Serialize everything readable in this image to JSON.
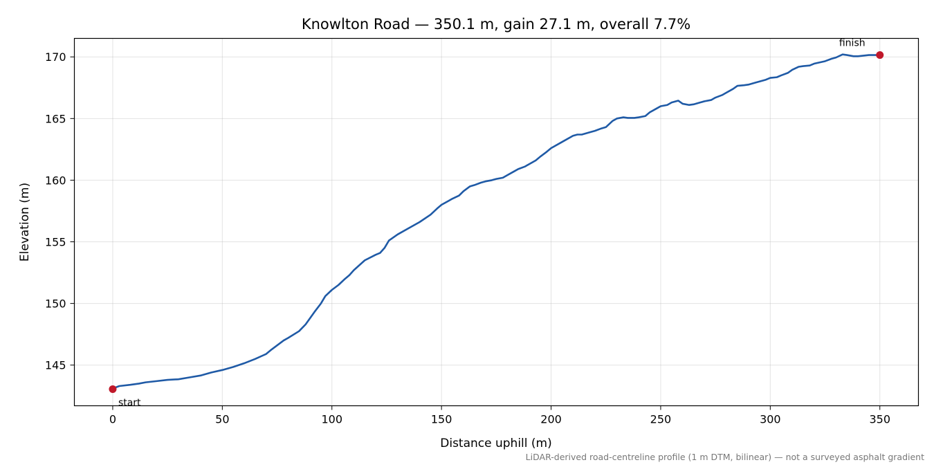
{
  "chart_data": {
    "type": "line",
    "title": "Knowlton Road — 350.1 m, gain 27.1 m, overall 7.7%",
    "xlabel": "Distance uphill (m)",
    "ylabel": "Elevation (m)",
    "xlim": [
      -17.5,
      367.6
    ],
    "ylim": [
      141.7,
      171.5
    ],
    "xticks": [
      0,
      50,
      100,
      150,
      200,
      250,
      300,
      350
    ],
    "yticks": [
      145,
      150,
      155,
      160,
      165,
      170
    ],
    "grid": true,
    "note": "LiDAR-derived road-centreline profile (1 m DTM, bilinear) — not a surveyed asphalt gradient",
    "colors": {
      "line": "#1f5aa6",
      "markers": "#c0182a"
    },
    "series": [
      {
        "x": [
          0,
          3,
          8,
          12,
          15,
          20,
          25,
          30,
          35,
          40,
          45,
          50,
          55,
          60,
          65,
          70,
          72,
          75,
          78,
          80,
          85,
          88,
          90,
          92,
          95,
          97,
          100,
          103,
          106,
          108,
          110,
          115,
          120,
          122,
          124,
          126,
          130,
          135,
          140,
          145,
          148,
          150,
          153,
          155,
          158,
          160,
          163,
          165,
          168,
          170,
          173,
          175,
          178,
          180,
          183,
          185,
          188,
          190,
          193,
          195,
          198,
          200,
          205,
          210,
          212,
          214,
          218,
          220,
          223,
          225,
          228,
          230,
          233,
          235,
          238,
          240,
          243,
          245,
          248,
          250,
          253,
          255,
          258,
          260,
          263,
          265,
          268,
          270,
          273,
          275,
          278,
          280,
          283,
          285,
          288,
          290,
          293,
          295,
          298,
          300,
          303,
          305,
          308,
          310,
          313,
          315,
          318,
          320,
          325,
          328,
          330,
          333,
          335,
          338,
          340,
          345,
          350
        ],
        "y": [
          143.1,
          143.3,
          143.4,
          143.5,
          143.6,
          143.7,
          143.8,
          143.85,
          144.0,
          144.15,
          144.4,
          144.6,
          144.85,
          145.15,
          145.5,
          145.9,
          146.2,
          146.6,
          147.0,
          147.2,
          147.75,
          148.3,
          148.8,
          149.3,
          150.0,
          150.6,
          151.1,
          151.5,
          152.0,
          152.3,
          152.7,
          153.5,
          153.95,
          154.1,
          154.5,
          155.1,
          155.6,
          156.1,
          156.6,
          157.2,
          157.7,
          158.0,
          158.3,
          158.5,
          158.75,
          159.1,
          159.5,
          159.6,
          159.8,
          159.9,
          160.0,
          160.1,
          160.2,
          160.4,
          160.7,
          160.9,
          161.1,
          161.3,
          161.6,
          161.9,
          162.3,
          162.6,
          163.1,
          163.6,
          163.7,
          163.7,
          163.9,
          164.0,
          164.2,
          164.3,
          164.8,
          165.0,
          165.1,
          165.05,
          165.05,
          165.1,
          165.2,
          165.5,
          165.8,
          166.0,
          166.1,
          166.3,
          166.45,
          166.2,
          166.1,
          166.15,
          166.3,
          166.4,
          166.5,
          166.7,
          166.9,
          167.1,
          167.4,
          167.65,
          167.7,
          167.75,
          167.9,
          168.0,
          168.15,
          168.3,
          168.35,
          168.5,
          168.7,
          168.95,
          169.2,
          169.25,
          169.3,
          169.45,
          169.65,
          169.85,
          169.95,
          170.2,
          170.15,
          170.05,
          170.05,
          170.15,
          170.15
        ]
      }
    ],
    "markers": [
      {
        "label": "start",
        "x": 0,
        "y": 143.05
      },
      {
        "label": "finish",
        "x": 350,
        "y": 170.15
      }
    ]
  }
}
